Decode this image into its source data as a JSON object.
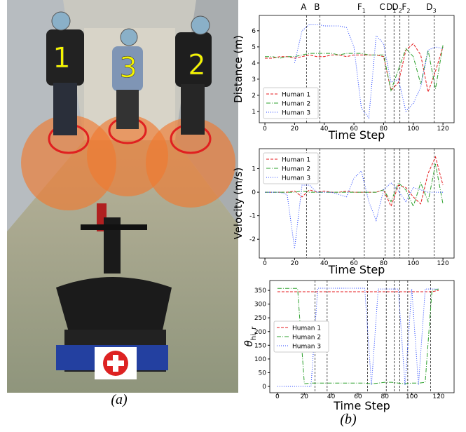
{
  "figure_a": {
    "labels": [
      "1",
      "3",
      "2"
    ],
    "caption": "(a)"
  },
  "caption_b": "(b)",
  "chart_data": [
    {
      "type": "line",
      "ylabel": "Distance (m)",
      "xlabel": "Time Step",
      "x": [
        0,
        5,
        10,
        15,
        20,
        25,
        30,
        35,
        40,
        45,
        50,
        55,
        60,
        65,
        70,
        75,
        80,
        85,
        90,
        95,
        100,
        105,
        110,
        115,
        120
      ],
      "xlim": [
        -3.8,
        127.5
      ],
      "xticks": [
        0,
        20,
        40,
        60,
        80,
        100,
        120
      ],
      "ylim": [
        0.3,
        6.95
      ],
      "yticks": [
        1,
        2,
        3,
        4,
        5,
        6
      ],
      "legend": "lower left",
      "events": [
        {
          "value": 28,
          "label": "A"
        },
        {
          "value": 37,
          "label": "B"
        },
        {
          "value": 67,
          "label": "F",
          "subscript": "1"
        },
        {
          "value": 81,
          "label": "C"
        },
        {
          "value": 87,
          "label": "D",
          "subscript": "1"
        },
        {
          "value": 91,
          "label": "D",
          "subscript": "2"
        },
        {
          "value": 97,
          "label": "F",
          "subscript": "2"
        },
        {
          "value": 114,
          "label": "D",
          "subscript": "3"
        }
      ],
      "series": [
        {
          "name": "Human 1",
          "color": "#e41a1c",
          "style": "dashed",
          "values": [
            4.3,
            4.3,
            4.4,
            4.4,
            4.3,
            4.4,
            4.5,
            4.4,
            4.4,
            4.5,
            4.5,
            4.4,
            4.5,
            4.5,
            4.5,
            4.5,
            4.4,
            2.3,
            2.8,
            4.8,
            5.2,
            4.5,
            2.2,
            3.5,
            5.0
          ]
        },
        {
          "name": "Human 2",
          "color": "#2ca02c",
          "style": "dashdot",
          "values": [
            4.4,
            4.4,
            4.3,
            4.4,
            4.4,
            4.5,
            4.6,
            4.6,
            4.6,
            4.6,
            4.5,
            4.6,
            4.6,
            4.6,
            4.5,
            4.5,
            4.5,
            2.3,
            3.6,
            4.9,
            4.4,
            2.7,
            4.8,
            2.4,
            5.1
          ]
        },
        {
          "name": "Human 3",
          "color": "#1f3fff",
          "style": "dotted",
          "values": [
            null,
            null,
            null,
            null,
            4.0,
            6.0,
            6.4,
            6.4,
            6.3,
            6.3,
            6.3,
            6.2,
            5.0,
            1.2,
            0.6,
            5.7,
            5.2,
            2.8,
            3.0,
            1.0,
            1.5,
            2.5,
            4.8,
            5.0,
            4.9
          ]
        }
      ]
    },
    {
      "type": "line",
      "ylabel": "Velocity (m/s)",
      "xlabel": "Time Step",
      "x": [
        0,
        5,
        10,
        15,
        20,
        25,
        30,
        35,
        40,
        45,
        50,
        55,
        60,
        65,
        70,
        75,
        80,
        85,
        90,
        95,
        100,
        105,
        110,
        115,
        120
      ],
      "xlim": [
        -3.8,
        127.5
      ],
      "xticks": [
        0,
        20,
        40,
        60,
        80,
        100,
        120
      ],
      "ylim": [
        -2.8,
        1.85
      ],
      "yticks": [
        -2,
        -1,
        0,
        1
      ],
      "legend": "upper left",
      "event_lines": [
        28,
        37,
        67,
        81,
        87,
        91,
        97,
        114
      ],
      "series": [
        {
          "name": "Human 1",
          "color": "#e41a1c",
          "style": "dashed",
          "values": [
            0,
            0,
            0,
            0,
            0.05,
            -0.2,
            0.1,
            0,
            0.05,
            0,
            0,
            0.05,
            0,
            0,
            0,
            0,
            0.1,
            -0.6,
            0.3,
            0.2,
            -0.2,
            -0.5,
            0.8,
            1.5,
            0.3
          ]
        },
        {
          "name": "Human 2",
          "color": "#2ca02c",
          "style": "dashdot",
          "values": [
            0,
            0,
            0,
            0,
            0,
            0.05,
            0,
            0,
            0,
            0,
            0,
            0,
            0,
            0,
            0,
            0,
            0.1,
            -0.4,
            0.4,
            0.1,
            -0.6,
            0.4,
            -0.4,
            1.2,
            -0.5
          ]
        },
        {
          "name": "Human 3",
          "color": "#1f3fff",
          "style": "dotted",
          "values": [
            0,
            0,
            0,
            -0.1,
            -2.4,
            0.3,
            0.3,
            0,
            0,
            0,
            -0.1,
            -0.2,
            0.6,
            0.9,
            -0.4,
            -1.2,
            0.1,
            0.4,
            0.05,
            -0.4,
            0.2,
            0.1,
            0,
            0,
            0
          ]
        }
      ]
    },
    {
      "type": "line",
      "ylabel": "θ",
      "ylabel_subscript": "hi, r",
      "xlabel": "Time Step",
      "x": [
        0,
        5,
        10,
        15,
        20,
        25,
        30,
        35,
        40,
        45,
        50,
        55,
        60,
        65,
        70,
        75,
        80,
        85,
        90,
        95,
        100,
        105,
        110,
        115,
        120
      ],
      "xlim": [
        -5.7,
        131.5
      ],
      "xticks": [
        0,
        20,
        40,
        60,
        80,
        100,
        120
      ],
      "ylim": [
        -23,
        386
      ],
      "yticks": [
        0,
        50,
        100,
        150,
        200,
        250,
        300,
        350
      ],
      "legend": "center left",
      "event_lines": [
        28,
        37,
        67,
        81,
        87,
        91,
        97,
        114
      ],
      "series": [
        {
          "name": "Human 1",
          "color": "#e41a1c",
          "style": "dashed",
          "values": [
            345,
            345,
            345,
            345,
            345,
            345,
            345,
            345,
            345,
            345,
            345,
            345,
            345,
            345,
            345,
            345,
            345,
            345,
            345,
            345,
            345,
            345,
            345,
            345,
            350
          ]
        },
        {
          "name": "Human 2",
          "color": "#2ca02c",
          "style": "dashdot",
          "values": [
            357,
            357,
            357,
            357,
            10,
            12,
            12,
            12,
            12,
            12,
            12,
            12,
            12,
            12,
            10,
            12,
            15,
            15,
            12,
            10,
            12,
            12,
            15,
            350,
            355
          ]
        },
        {
          "name": "Human 3",
          "color": "#1f3fff",
          "style": "dotted",
          "values": [
            0,
            0,
            0,
            0,
            0,
            0,
            358,
            358,
            358,
            358,
            358,
            358,
            358,
            358,
            5,
            355,
            355,
            355,
            355,
            5,
            355,
            5,
            355,
            355,
            355
          ]
        }
      ]
    }
  ]
}
